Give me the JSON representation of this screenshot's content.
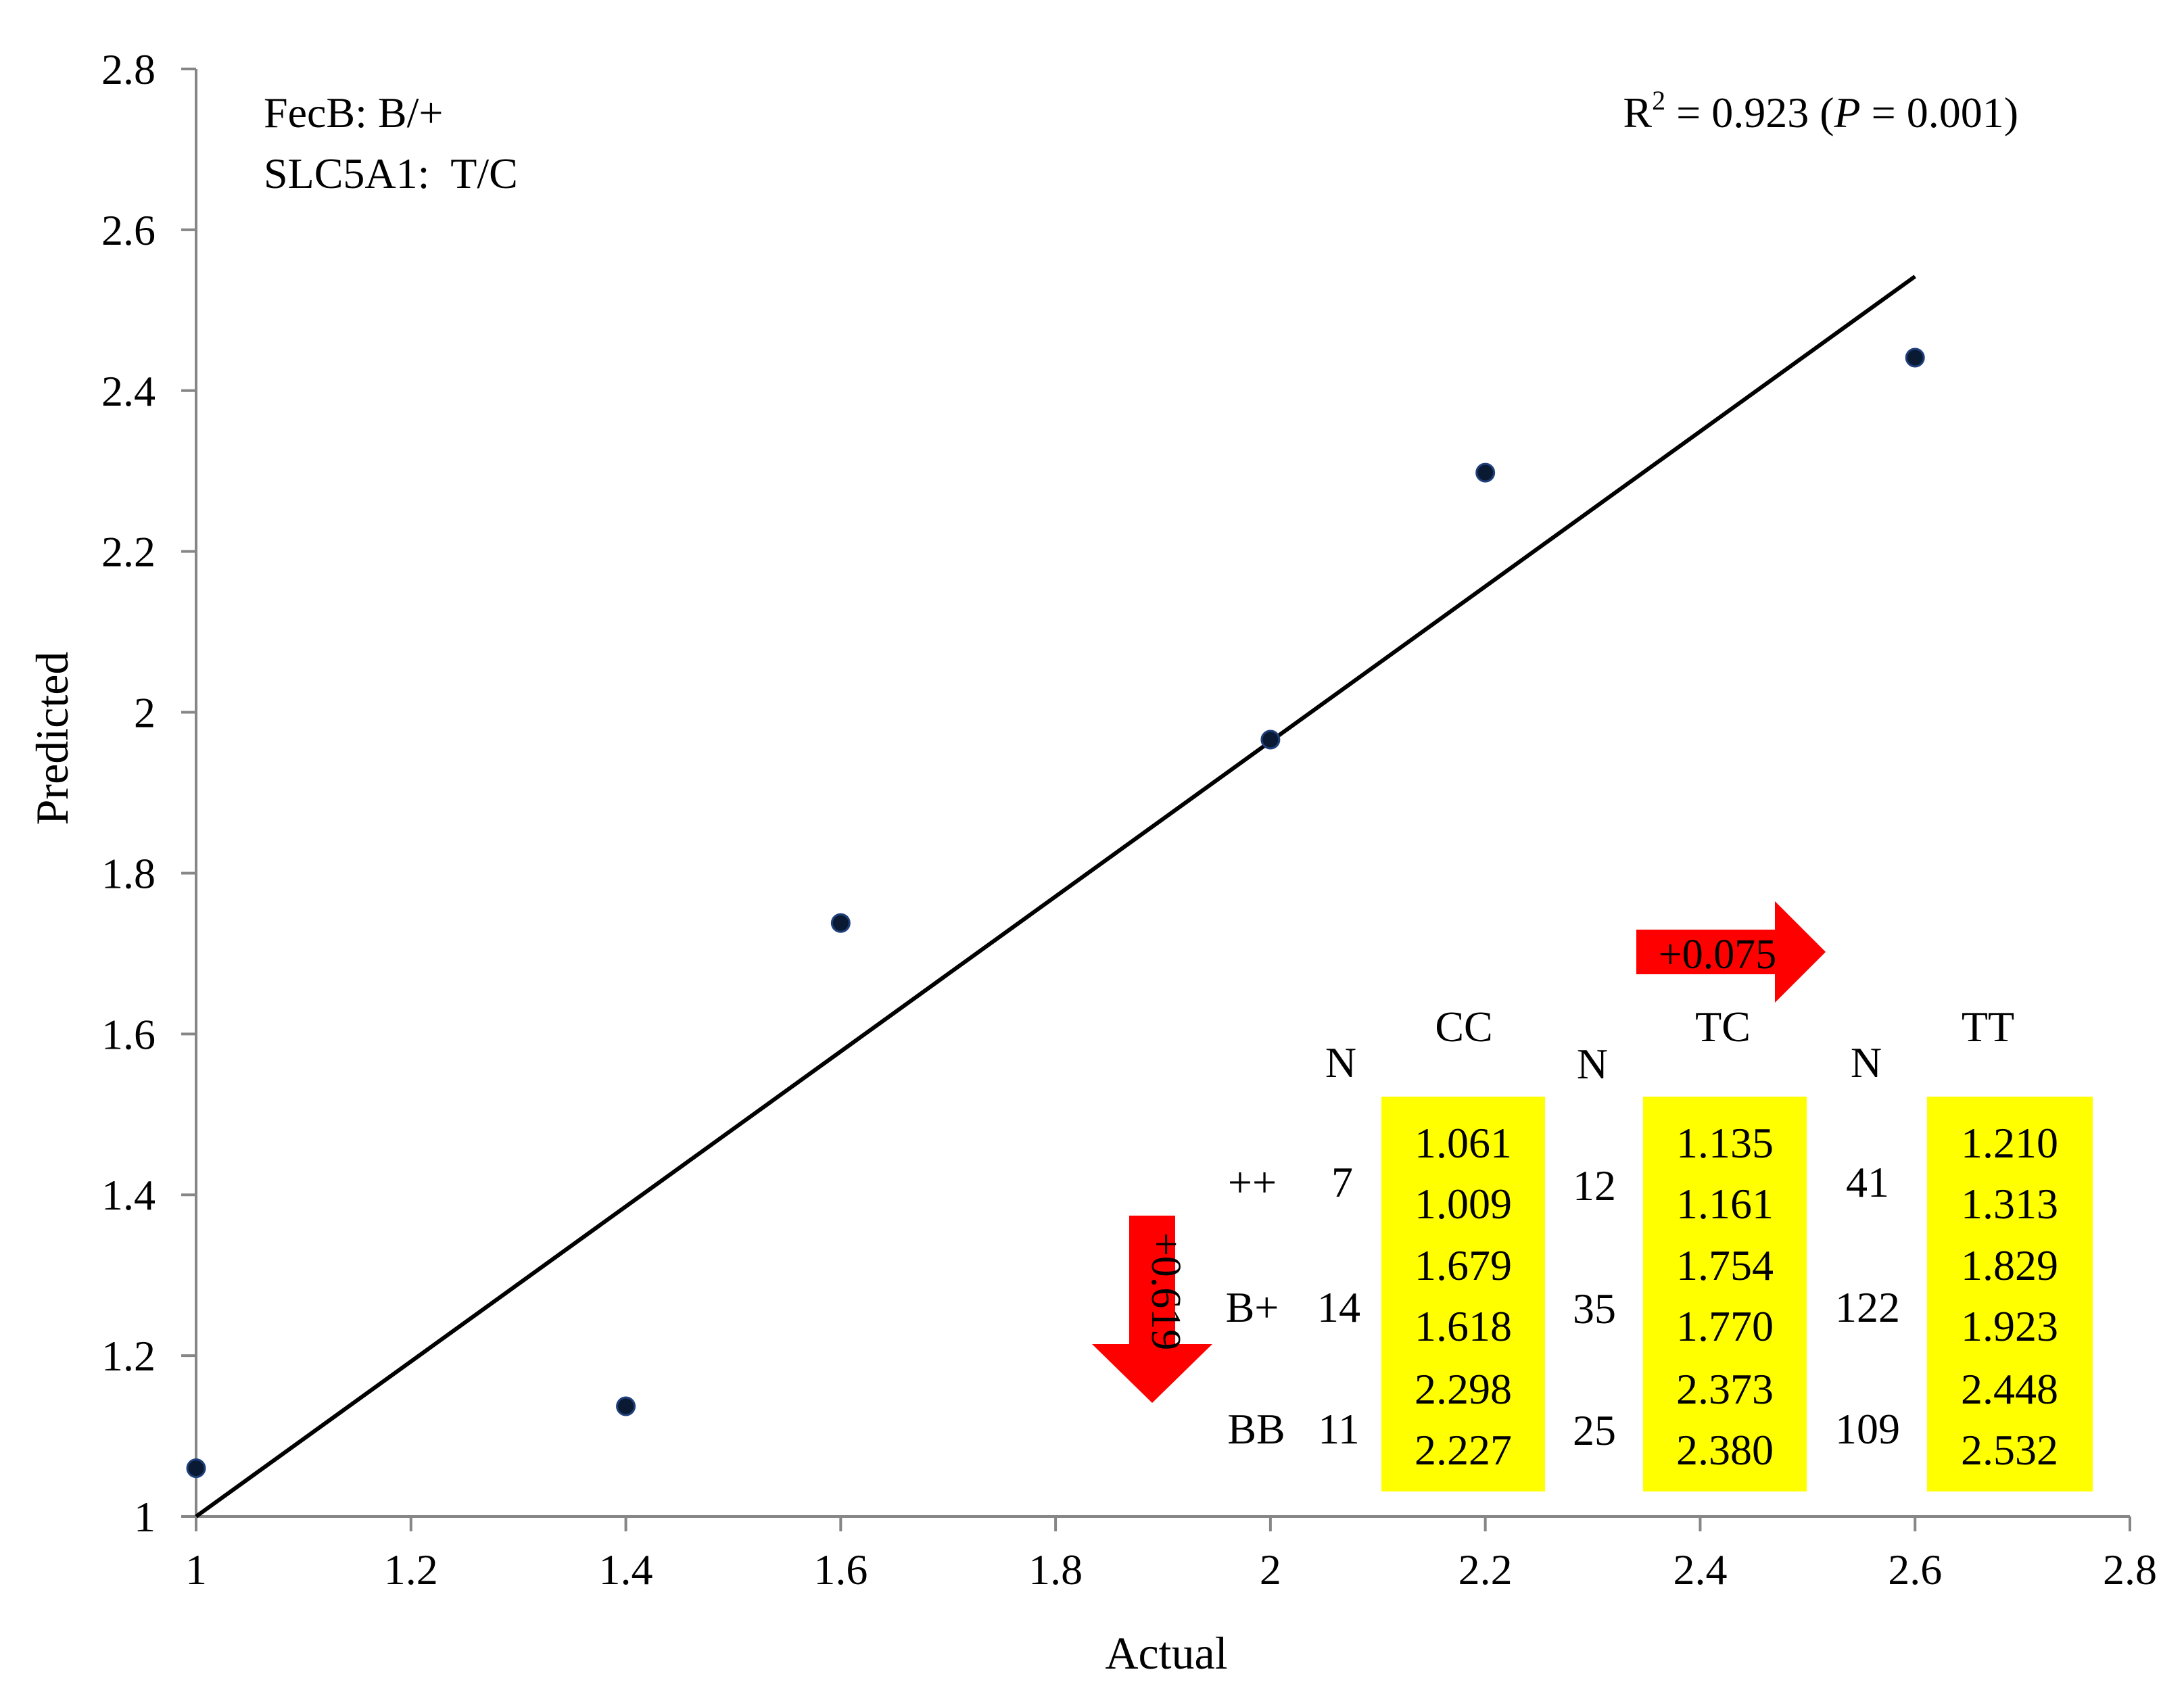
{
  "colors": {
    "highlight": "#ffff00",
    "arrow": "#ff0000",
    "point": "#0b1a33",
    "axis": "#868686"
  },
  "chart_data": {
    "type": "scatter",
    "xlabel": "Actual",
    "ylabel": "Predicted",
    "xlim": [
      1,
      2.8
    ],
    "ylim": [
      1,
      2.8
    ],
    "xticks": [
      "1",
      "1.2",
      "1.4",
      "1.6",
      "1.8",
      "2",
      "2.2",
      "2.4",
      "2.6",
      "2.8"
    ],
    "yticks": [
      "1",
      "1.2",
      "1.4",
      "1.6",
      "1.8",
      "2",
      "2.2",
      "2.4",
      "2.6",
      "2.8"
    ],
    "grid": false,
    "points": [
      {
        "x": 1.0,
        "y": 1.06
      },
      {
        "x": 1.4,
        "y": 1.137
      },
      {
        "x": 1.6,
        "y": 1.738
      },
      {
        "x": 2.0,
        "y": 1.966
      },
      {
        "x": 2.2,
        "y": 2.298
      },
      {
        "x": 2.6,
        "y": 2.441
      }
    ],
    "fit_line": {
      "x": [
        1.0,
        2.6
      ],
      "y": [
        1.0,
        2.542
      ]
    },
    "annotations": {
      "genotype_line1": "FecB: B/+",
      "genotype_line2": "SLC5A1:  T/C",
      "r2_prefix": "R",
      "r2_sup": "2",
      "r2_mid": " = 0.923 (",
      "r2_p": "P",
      "r2_suffix": " = 0.001)"
    },
    "effects": {
      "slc5a1_effect": "+0.075",
      "fecb_effect": "+0.619"
    },
    "table": {
      "columns": [
        "CC",
        "TC",
        "TT"
      ],
      "n_header": "N",
      "rows": [
        {
          "label": "++",
          "n": [
            "7",
            "12",
            "41"
          ],
          "values": [
            [
              "1.061",
              "1.009"
            ],
            [
              "1.135",
              "1.161"
            ],
            [
              "1.210",
              "1.313"
            ]
          ]
        },
        {
          "label": "B+",
          "n": [
            "14",
            "35",
            "122"
          ],
          "values": [
            [
              "1.679",
              "1.618"
            ],
            [
              "1.754",
              "1.770"
            ],
            [
              "1.829",
              "1.923"
            ]
          ]
        },
        {
          "label": "BB",
          "n": [
            "11",
            "25",
            "109"
          ],
          "values": [
            [
              "2.298",
              "2.227"
            ],
            [
              "2.373",
              "2.380"
            ],
            [
              "2.448",
              "2.532"
            ]
          ]
        }
      ]
    }
  }
}
